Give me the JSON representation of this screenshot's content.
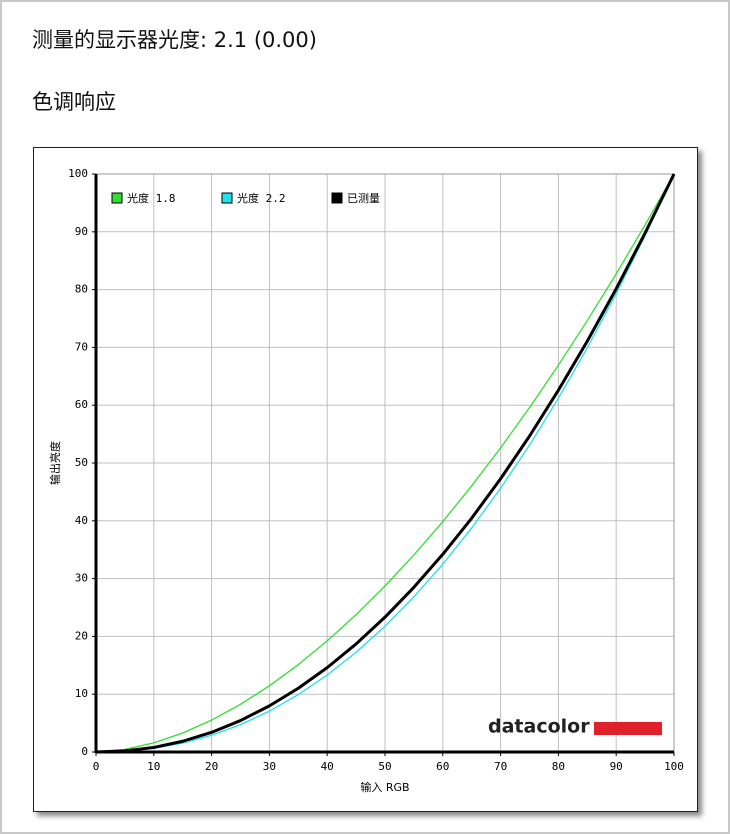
{
  "heading": "测量的显示器光度:  2.1 (0.00)",
  "section": "色调响应",
  "logo": "datacolor",
  "chart_data": {
    "type": "line",
    "xlabel": "输入 RGB",
    "ylabel": "输出亮度",
    "x": [
      0,
      5,
      10,
      15,
      20,
      25,
      30,
      35,
      40,
      45,
      50,
      55,
      60,
      65,
      70,
      75,
      80,
      85,
      90,
      95,
      100
    ],
    "series": [
      {
        "name": "光度 1.8",
        "color": "#33dd33",
        "width": 1.3,
        "values": [
          0,
          0.46,
          1.58,
          3.29,
          5.52,
          8.25,
          11.45,
          15.11,
          19.22,
          23.76,
          28.72,
          34.09,
          39.87,
          46.05,
          52.62,
          59.58,
          66.92,
          74.64,
          82.72,
          91.18,
          100
        ]
      },
      {
        "name": "光度 2.2",
        "color": "#22e0e8",
        "width": 1.3,
        "values": [
          0,
          0.14,
          0.63,
          1.54,
          2.9,
          4.74,
          7.07,
          9.93,
          13.32,
          17.26,
          21.76,
          26.84,
          32.5,
          38.76,
          45.63,
          53.1,
          61.21,
          69.94,
          79.3,
          89.33,
          100
        ]
      },
      {
        "name": "已测量",
        "color": "#000000",
        "width": 3,
        "values": [
          0,
          0.19,
          0.79,
          1.86,
          3.4,
          5.44,
          7.98,
          11.03,
          14.6,
          18.7,
          23.33,
          28.5,
          34.21,
          40.46,
          47.28,
          54.65,
          62.6,
          71.08,
          80.15,
          89.79,
          100
        ]
      }
    ],
    "xlim": [
      0,
      100
    ],
    "ylim": [
      0,
      100
    ],
    "xticks": [
      0,
      10,
      20,
      30,
      40,
      50,
      60,
      70,
      80,
      90,
      100
    ],
    "yticks": [
      0,
      10,
      20,
      30,
      40,
      50,
      60,
      70,
      80,
      90,
      100
    ],
    "grid": true,
    "legend": "top-left"
  }
}
